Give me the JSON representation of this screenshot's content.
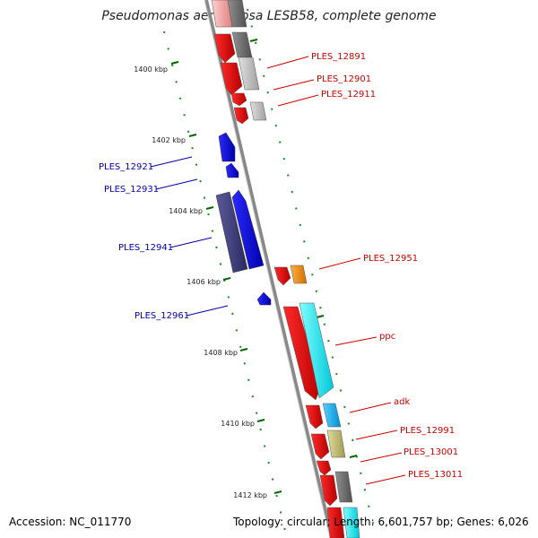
{
  "title": "Pseudomonas aeruginosa LESB58, complete genome",
  "footer": {
    "accession": "Accession: NC_011770",
    "topology": "Topology: circular; Length: 6,601,757 bp; Genes: 6,026"
  },
  "scale_labels": [
    "1400 kbp",
    "1402 kbp",
    "1404 kbp",
    "1406 kbp",
    "1408 kbp",
    "1410 kbp",
    "1412 kbp"
  ],
  "gene_labels_right": [
    "PLES_12891",
    "PLES_12901",
    "PLES_12911",
    "PLES_12951",
    "ppc",
    "adk",
    "PLES_12991",
    "PLES_13001",
    "PLES_13011"
  ],
  "gene_labels_left": [
    "PLES_12921",
    "PLES_12931",
    "PLES_12941",
    "PLES_12961"
  ],
  "colors": {
    "forward_label": "#cc0000",
    "reverse_label": "#0000aa",
    "tick": "#006600",
    "backbone": "#888888"
  }
}
